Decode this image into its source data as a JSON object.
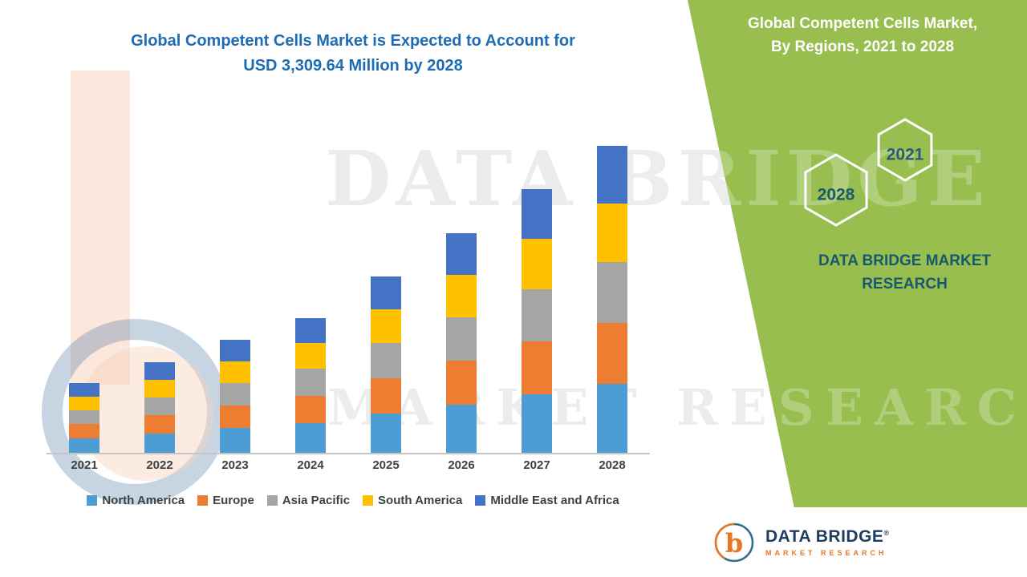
{
  "header": {
    "title_line1": "Global Competent Cells Market is Expected to Account for",
    "title_line2": "USD 3,309.64 Million by 2028"
  },
  "chart_data": {
    "type": "bar",
    "stacked": true,
    "title": "Global Competent Cells Market is Expected to Account for USD 3,309.64 Million by 2028",
    "xlabel": "",
    "ylabel": "",
    "unit": "USD Million",
    "ylim": [
      0,
      3400
    ],
    "grid": false,
    "legend_position": "bottom",
    "categories": [
      "2021",
      "2022",
      "2023",
      "2024",
      "2025",
      "2026",
      "2027",
      "2028"
    ],
    "series": [
      {
        "name": "North America",
        "color": "#4E9CD4",
        "values": [
          160,
          210,
          265,
          320,
          420,
          520,
          630,
          740
        ]
      },
      {
        "name": "Europe",
        "color": "#ED7D31",
        "values": [
          150,
          195,
          245,
          295,
          385,
          475,
          570,
          660
        ]
      },
      {
        "name": "Asia Pacific",
        "color": "#A5A5A5",
        "values": [
          150,
          195,
          240,
          290,
          380,
          470,
          565,
          655
        ]
      },
      {
        "name": "South America",
        "color": "#FFC000",
        "values": [
          145,
          190,
          235,
          280,
          365,
          450,
          540,
          630
        ]
      },
      {
        "name": "Middle East and Africa",
        "color": "#4472C4",
        "values": [
          149,
          189,
          236,
          270,
          355,
          449,
          536,
          624.64
        ]
      }
    ],
    "totals": [
      754,
      979,
      1221,
      1455,
      1905,
      2364,
      2841,
      3309.64
    ]
  },
  "side_panel": {
    "title_line1": "Global Competent Cells Market,",
    "title_line2": "By Regions, 2021 to 2028",
    "hex_year_right": "2021",
    "hex_year_left": "2028",
    "brand_line1": "DATA BRIDGE MARKET",
    "brand_line2": "RESEARCH"
  },
  "watermark": {
    "line1": "DATA BRIDGE",
    "line2": "MARKET RESEARCH"
  },
  "footer_logo": {
    "letter": "b",
    "name": "DATA BRIDGE",
    "registered": "®",
    "tagline": "MARKET RESEARCH"
  },
  "colors": {
    "chart_title": "#1E6CB5",
    "panel_green": "#97BE4F",
    "panel_text": "#FFFFFF",
    "brand_teal": "#17596E",
    "logo_navy": "#1D3C5E",
    "logo_orange": "#E87725",
    "axis_line": "#C5C5C5",
    "label_gray": "#404040"
  }
}
